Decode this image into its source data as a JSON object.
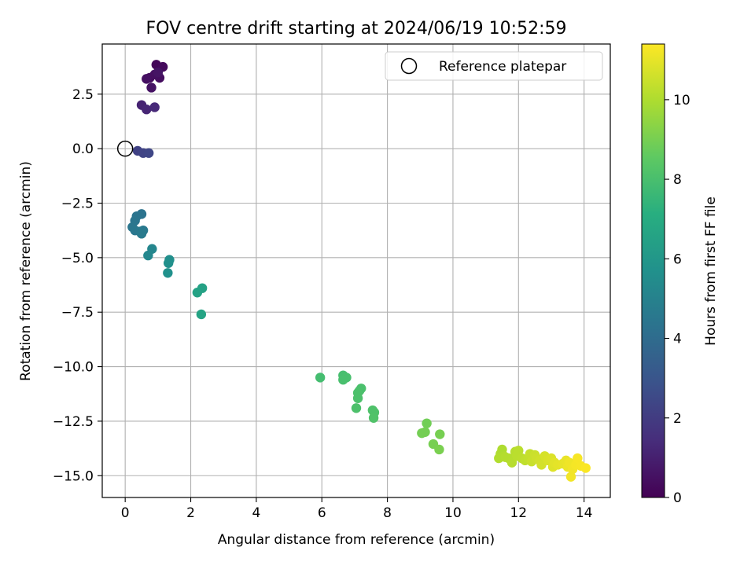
{
  "chart_data": {
    "type": "scatter",
    "title": "FOV centre drift starting at 2024/06/19 10:52:59",
    "xlabel": "Angular distance from reference (arcmin)",
    "ylabel": "Rotation from reference (arcmin)",
    "xlim": [
      -0.7,
      14.8
    ],
    "ylim": [
      -16.0,
      4.8
    ],
    "xticks": [
      0,
      2,
      4,
      6,
      8,
      10,
      12,
      14
    ],
    "xtick_labels": [
      "0",
      "2",
      "4",
      "6",
      "8",
      "10",
      "12",
      "14"
    ],
    "yticks": [
      2.5,
      0.0,
      -2.5,
      -5.0,
      -7.5,
      -10.0,
      -12.5,
      -15.0
    ],
    "ytick_labels": [
      "2.5",
      "0.0",
      "−2.5",
      "−5.0",
      "−7.5",
      "−10.0",
      "−12.5",
      "−15.0"
    ],
    "grid": true,
    "legend": {
      "placement": "top-right",
      "entries": [
        "Reference platepar"
      ]
    },
    "reference_point": {
      "x": 0,
      "y": 0
    },
    "colorbar": {
      "label": "Hours from first FF file",
      "min": 0,
      "max": 11.4,
      "ticks": [
        0,
        2,
        4,
        6,
        8,
        10
      ],
      "tick_labels": [
        "0",
        "2",
        "4",
        "6",
        "8",
        "10"
      ],
      "colormap": "viridis"
    },
    "points": [
      {
        "x": 0.95,
        "y": 3.85,
        "h": 0.2
      },
      {
        "x": 1.15,
        "y": 3.75,
        "h": 0.3
      },
      {
        "x": 0.75,
        "y": 3.25,
        "h": 0.35
      },
      {
        "x": 1.05,
        "y": 3.25,
        "h": 0.4
      },
      {
        "x": 0.9,
        "y": 3.4,
        "h": 0.45
      },
      {
        "x": 0.65,
        "y": 3.2,
        "h": 0.5
      },
      {
        "x": 0.8,
        "y": 2.8,
        "h": 0.55
      },
      {
        "x": 1.0,
        "y": 3.5,
        "h": 0.6
      },
      {
        "x": 0.5,
        "y": 2.0,
        "h": 1.1
      },
      {
        "x": 0.65,
        "y": 1.8,
        "h": 1.2
      },
      {
        "x": 0.9,
        "y": 1.9,
        "h": 1.3
      },
      {
        "x": 0.38,
        "y": -0.1,
        "h": 2.2
      },
      {
        "x": 0.55,
        "y": -0.2,
        "h": 2.3
      },
      {
        "x": 0.72,
        "y": -0.2,
        "h": 2.4
      },
      {
        "x": 0.5,
        "y": -3.0,
        "h": 4.3
      },
      {
        "x": 0.35,
        "y": -3.1,
        "h": 4.35
      },
      {
        "x": 0.3,
        "y": -3.3,
        "h": 4.4
      },
      {
        "x": 0.22,
        "y": -3.6,
        "h": 4.45
      },
      {
        "x": 0.3,
        "y": -3.75,
        "h": 4.5
      },
      {
        "x": 0.45,
        "y": -3.8,
        "h": 4.55
      },
      {
        "x": 0.55,
        "y": -3.75,
        "h": 4.6
      },
      {
        "x": 0.5,
        "y": -3.9,
        "h": 4.65
      },
      {
        "x": 0.82,
        "y": -4.6,
        "h": 5.2
      },
      {
        "x": 0.7,
        "y": -4.9,
        "h": 5.25
      },
      {
        "x": 1.35,
        "y": -5.1,
        "h": 5.6
      },
      {
        "x": 1.32,
        "y": -5.25,
        "h": 5.65
      },
      {
        "x": 1.3,
        "y": -5.7,
        "h": 5.7
      },
      {
        "x": 2.35,
        "y": -6.4,
        "h": 6.5
      },
      {
        "x": 2.2,
        "y": -6.6,
        "h": 6.55
      },
      {
        "x": 2.32,
        "y": -7.6,
        "h": 6.6
      },
      {
        "x": 5.95,
        "y": -10.5,
        "h": 7.9
      },
      {
        "x": 6.65,
        "y": -10.4,
        "h": 7.95
      },
      {
        "x": 6.75,
        "y": -10.5,
        "h": 8.0
      },
      {
        "x": 6.65,
        "y": -10.6,
        "h": 8.0
      },
      {
        "x": 7.2,
        "y": -11.0,
        "h": 8.05
      },
      {
        "x": 7.15,
        "y": -11.1,
        "h": 8.05
      },
      {
        "x": 7.1,
        "y": -11.2,
        "h": 8.1
      },
      {
        "x": 7.1,
        "y": -11.45,
        "h": 8.1
      },
      {
        "x": 7.05,
        "y": -11.9,
        "h": 8.1
      },
      {
        "x": 7.55,
        "y": -12.0,
        "h": 8.15
      },
      {
        "x": 7.6,
        "y": -12.1,
        "h": 8.15
      },
      {
        "x": 7.58,
        "y": -12.35,
        "h": 8.2
      },
      {
        "x": 9.2,
        "y": -12.6,
        "h": 8.9
      },
      {
        "x": 9.05,
        "y": -13.05,
        "h": 8.95
      },
      {
        "x": 9.15,
        "y": -13.0,
        "h": 8.95
      },
      {
        "x": 9.6,
        "y": -13.1,
        "h": 9.0
      },
      {
        "x": 9.4,
        "y": -13.55,
        "h": 9.0
      },
      {
        "x": 9.58,
        "y": -13.8,
        "h": 9.05
      },
      {
        "x": 11.5,
        "y": -13.8,
        "h": 10.0
      },
      {
        "x": 11.45,
        "y": -14.0,
        "h": 10.0
      },
      {
        "x": 11.55,
        "y": -14.1,
        "h": 10.05
      },
      {
        "x": 11.4,
        "y": -14.2,
        "h": 10.05
      },
      {
        "x": 11.6,
        "y": -14.15,
        "h": 10.1
      },
      {
        "x": 11.7,
        "y": -14.2,
        "h": 10.1
      },
      {
        "x": 11.8,
        "y": -14.4,
        "h": 10.15
      },
      {
        "x": 11.9,
        "y": -13.9,
        "h": 10.15
      },
      {
        "x": 11.95,
        "y": -14.1,
        "h": 10.2
      },
      {
        "x": 12.0,
        "y": -13.85,
        "h": 10.2
      },
      {
        "x": 12.1,
        "y": -14.2,
        "h": 10.25
      },
      {
        "x": 12.2,
        "y": -14.3,
        "h": 10.3
      },
      {
        "x": 12.3,
        "y": -14.2,
        "h": 10.35
      },
      {
        "x": 12.35,
        "y": -14.0,
        "h": 10.4
      },
      {
        "x": 12.4,
        "y": -14.35,
        "h": 10.45
      },
      {
        "x": 12.5,
        "y": -14.05,
        "h": 10.5
      },
      {
        "x": 12.55,
        "y": -14.2,
        "h": 10.55
      },
      {
        "x": 12.65,
        "y": -14.3,
        "h": 10.6
      },
      {
        "x": 12.7,
        "y": -14.5,
        "h": 10.65
      },
      {
        "x": 12.8,
        "y": -14.1,
        "h": 10.7
      },
      {
        "x": 12.9,
        "y": -14.3,
        "h": 10.75
      },
      {
        "x": 13.0,
        "y": -14.2,
        "h": 10.8
      },
      {
        "x": 13.05,
        "y": -14.6,
        "h": 10.85
      },
      {
        "x": 13.1,
        "y": -14.4,
        "h": 10.9
      },
      {
        "x": 13.2,
        "y": -14.5,
        "h": 10.95
      },
      {
        "x": 13.35,
        "y": -14.45,
        "h": 11.0
      },
      {
        "x": 13.45,
        "y": -14.3,
        "h": 11.05
      },
      {
        "x": 13.5,
        "y": -14.6,
        "h": 11.1
      },
      {
        "x": 13.55,
        "y": -14.4,
        "h": 11.15
      },
      {
        "x": 13.6,
        "y": -15.05,
        "h": 11.2
      },
      {
        "x": 13.65,
        "y": -14.7,
        "h": 11.2
      },
      {
        "x": 13.75,
        "y": -14.5,
        "h": 11.25
      },
      {
        "x": 13.8,
        "y": -14.2,
        "h": 11.3
      },
      {
        "x": 13.9,
        "y": -14.55,
        "h": 11.3
      },
      {
        "x": 14.05,
        "y": -14.65,
        "h": 11.35
      }
    ]
  }
}
